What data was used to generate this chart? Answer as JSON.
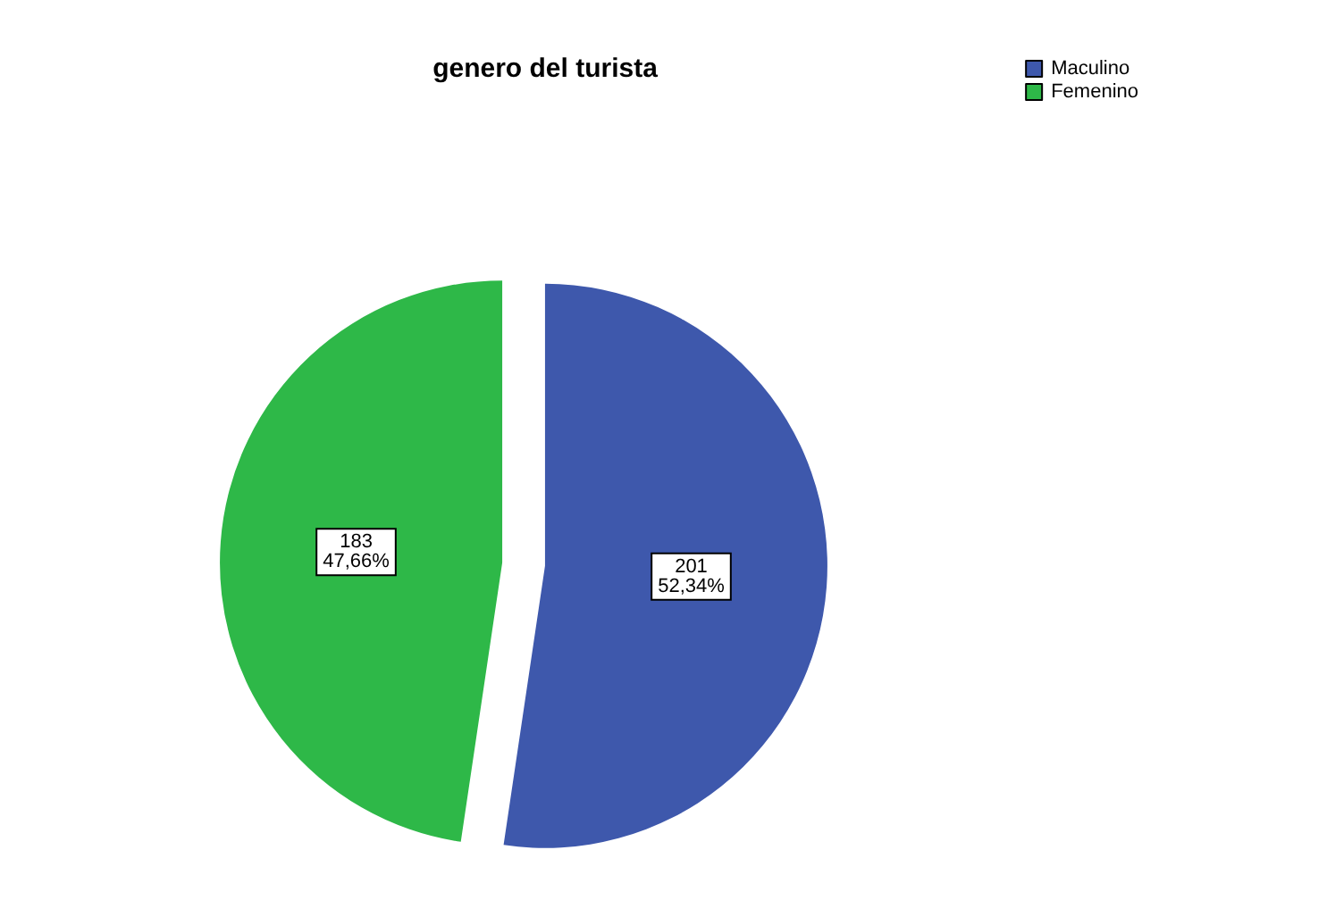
{
  "chart_data": {
    "type": "pie",
    "title": "genero del turista",
    "categories": [
      "Maculino",
      "Femenino"
    ],
    "values": [
      201,
      183
    ],
    "colors": [
      "#3e58ac",
      "#2eb848"
    ],
    "value_labels": [
      "201\n52,34%",
      "183\n47,66%"
    ],
    "legend": "top right"
  }
}
